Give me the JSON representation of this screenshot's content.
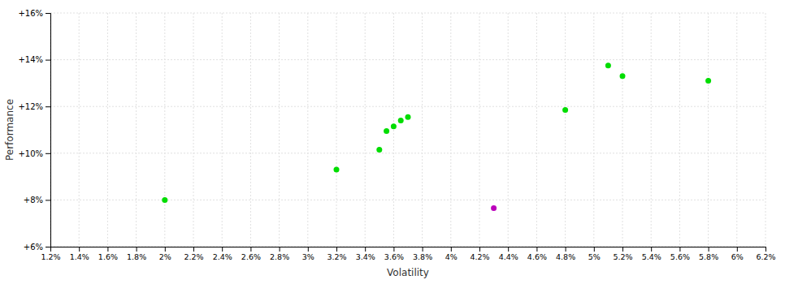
{
  "chart_data": {
    "type": "scatter",
    "xlabel": "Volatility",
    "ylabel": "Performance",
    "xlim": [
      0.012,
      0.062
    ],
    "ylim": [
      0.06,
      0.16
    ],
    "xticks": [
      {
        "value": 0.012,
        "label": "1.2%"
      },
      {
        "value": 0.014,
        "label": "1.4%"
      },
      {
        "value": 0.016,
        "label": "1.6%"
      },
      {
        "value": 0.018,
        "label": "1.8%"
      },
      {
        "value": 0.02,
        "label": "2%"
      },
      {
        "value": 0.022,
        "label": "2.2%"
      },
      {
        "value": 0.024,
        "label": "2.4%"
      },
      {
        "value": 0.026,
        "label": "2.6%"
      },
      {
        "value": 0.028,
        "label": "2.8%"
      },
      {
        "value": 0.03,
        "label": "3%"
      },
      {
        "value": 0.032,
        "label": "3.2%"
      },
      {
        "value": 0.034,
        "label": "3.4%"
      },
      {
        "value": 0.036,
        "label": "3.6%"
      },
      {
        "value": 0.038,
        "label": "3.8%"
      },
      {
        "value": 0.04,
        "label": "4%"
      },
      {
        "value": 0.042,
        "label": "4.2%"
      },
      {
        "value": 0.044,
        "label": "4.4%"
      },
      {
        "value": 0.046,
        "label": "4.6%"
      },
      {
        "value": 0.048,
        "label": "4.8%"
      },
      {
        "value": 0.05,
        "label": "5%"
      },
      {
        "value": 0.052,
        "label": "5.2%"
      },
      {
        "value": 0.054,
        "label": "5.4%"
      },
      {
        "value": 0.056,
        "label": "5.6%"
      },
      {
        "value": 0.058,
        "label": "5.8%"
      },
      {
        "value": 0.06,
        "label": "6%"
      },
      {
        "value": 0.062,
        "label": "6.2%"
      }
    ],
    "yticks": [
      {
        "value": 0.06,
        "label": "+6%"
      },
      {
        "value": 0.08,
        "label": "+8%"
      },
      {
        "value": 0.1,
        "label": "+10%"
      },
      {
        "value": 0.12,
        "label": "+12%"
      },
      {
        "value": 0.14,
        "label": "+14%"
      },
      {
        "value": 0.16,
        "label": "+16%"
      }
    ],
    "grid": true,
    "series": [
      {
        "color": "#00dd00",
        "x": [
          0.02,
          0.032,
          0.035,
          0.0355,
          0.036,
          0.0365,
          0.037,
          0.048,
          0.051,
          0.052,
          0.058
        ],
        "values": [
          0.08,
          0.093,
          0.1015,
          0.1095,
          0.1115,
          0.114,
          0.1155,
          0.1185,
          0.1375,
          0.133,
          0.131
        ]
      },
      {
        "color": "#bb00bb",
        "x": [
          0.043
        ],
        "values": [
          0.0765
        ]
      }
    ]
  }
}
